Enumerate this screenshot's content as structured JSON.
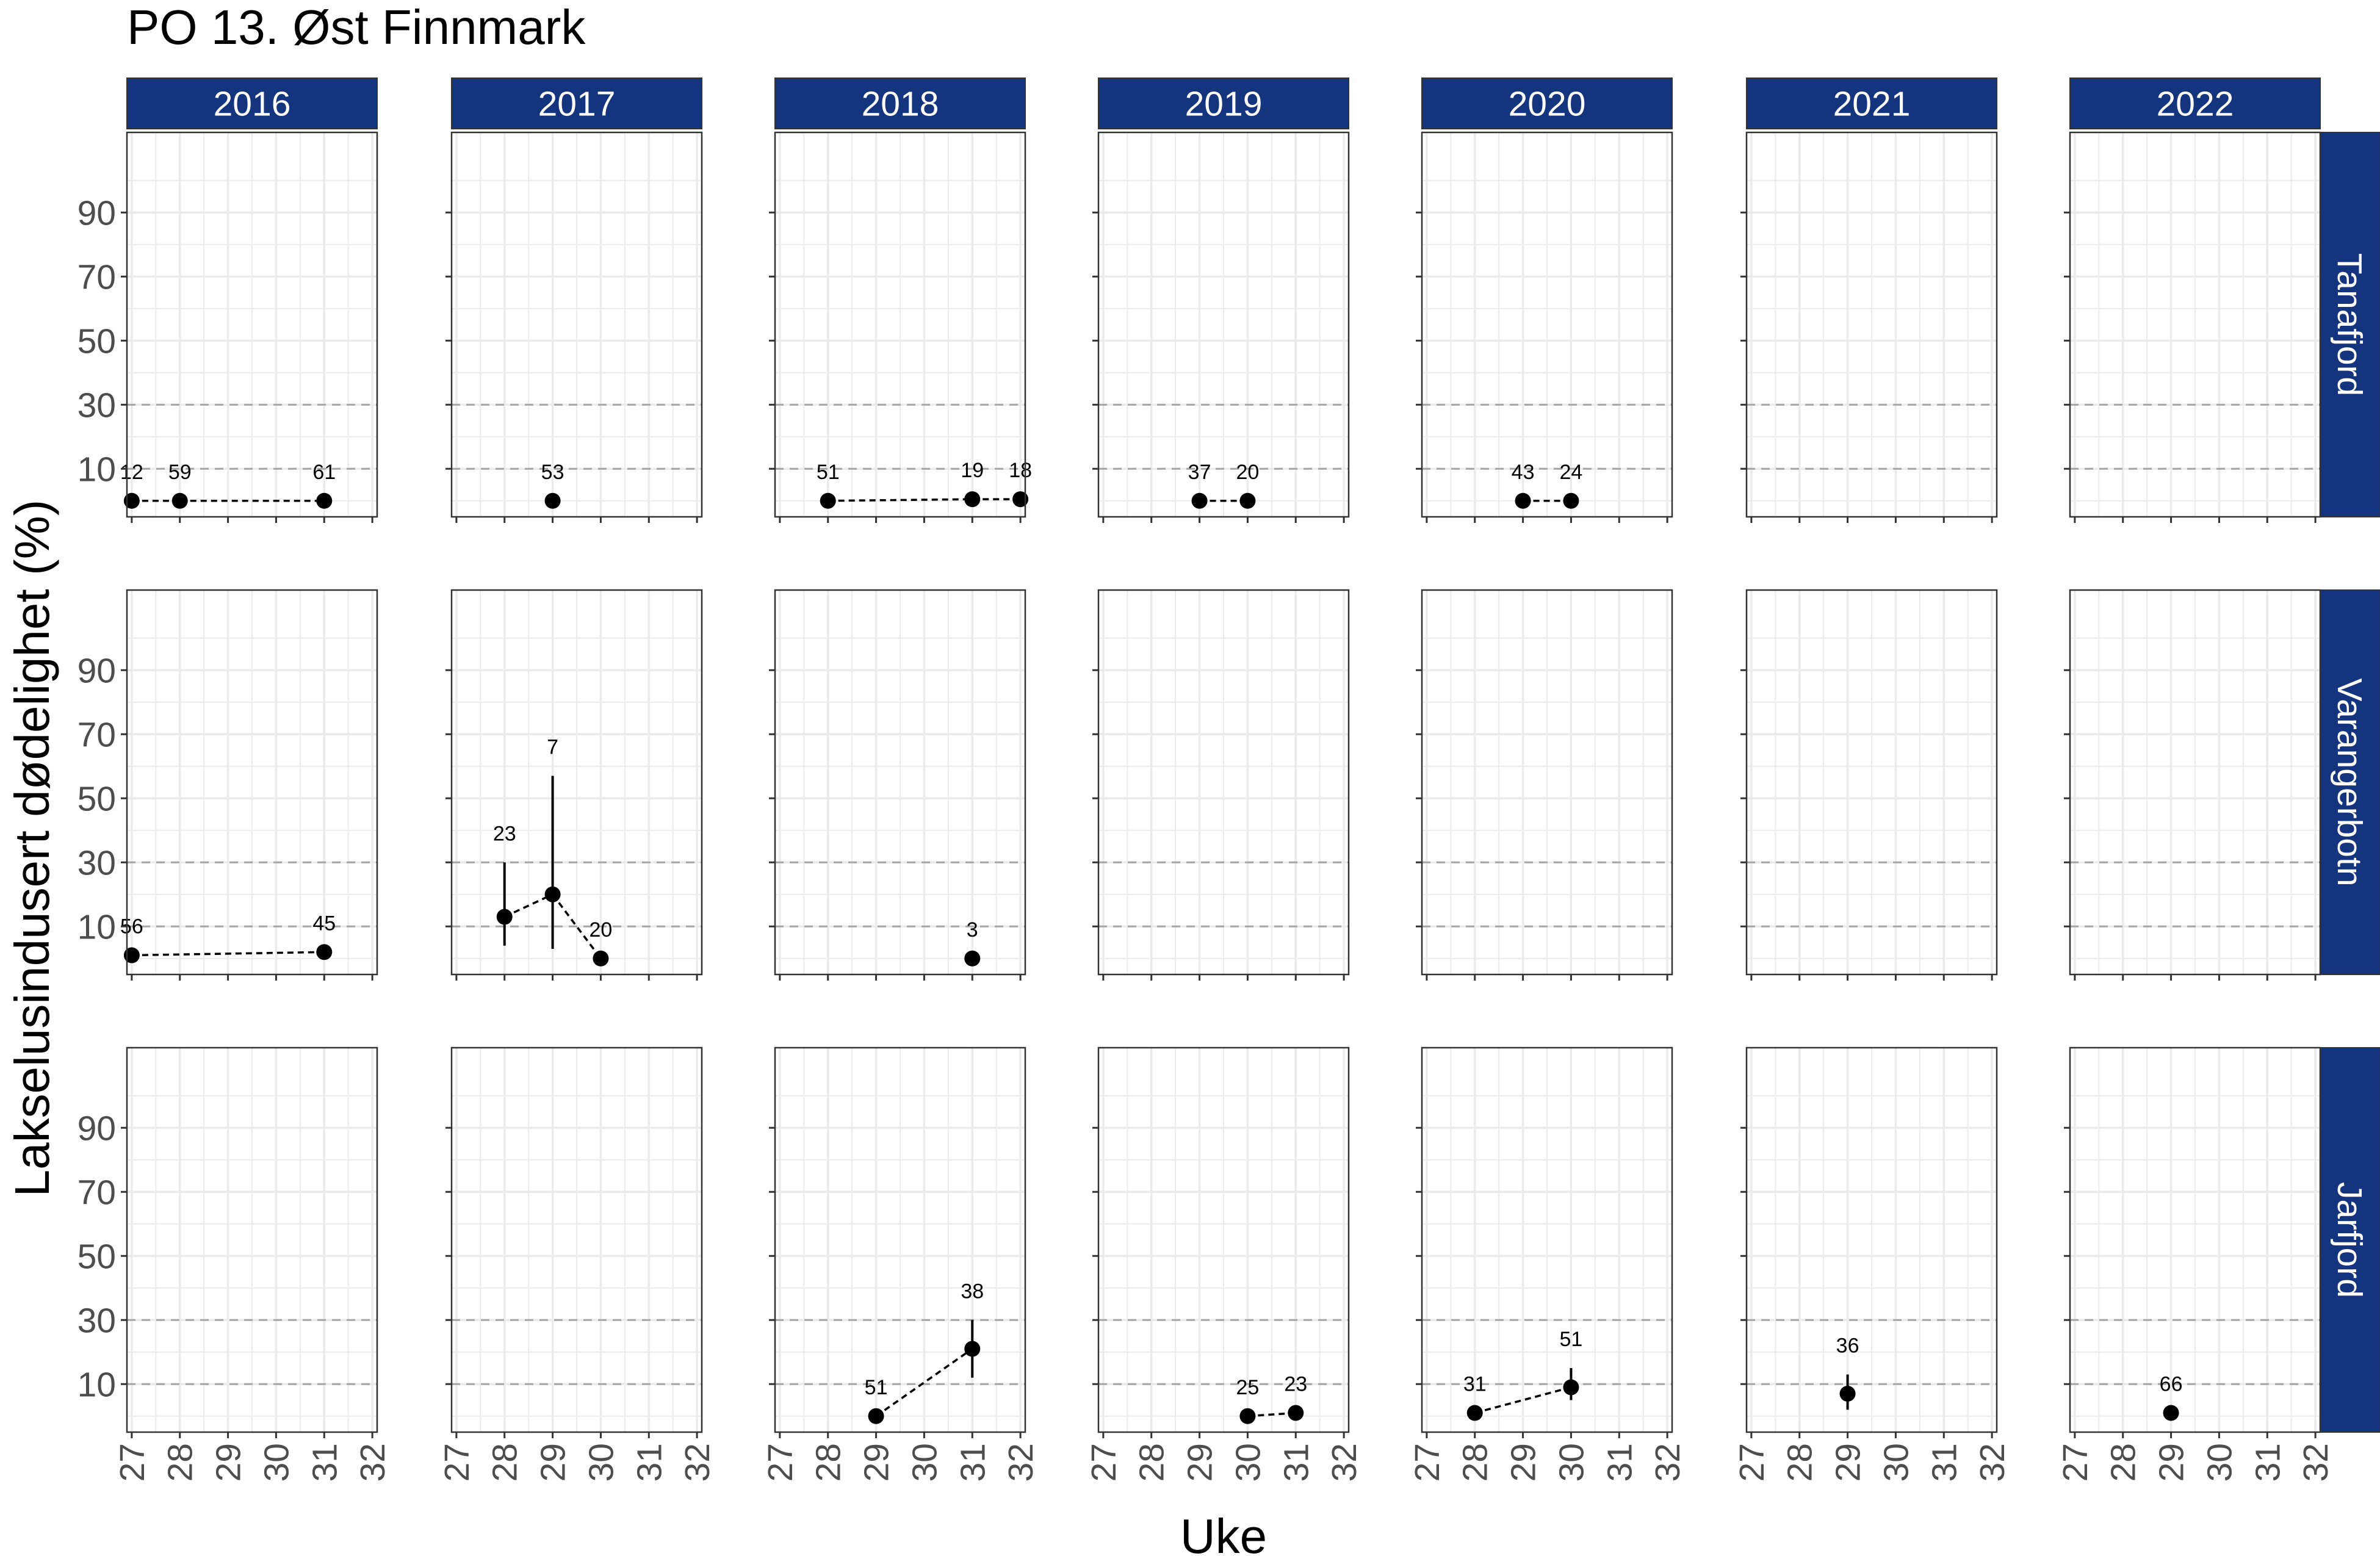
{
  "chart_data": {
    "type": "scatter",
    "title": "PO 13. Øst Finnmark",
    "xlabel": "Uke",
    "ylabel": "Lakselusindusert dødelighet (%)",
    "xlim": [
      26.9,
      32.1
    ],
    "ylim": [
      -5,
      115
    ],
    "x_ticks": [
      27,
      28,
      29,
      30,
      31,
      32
    ],
    "y_ticks": [
      10,
      30,
      50,
      70,
      90
    ],
    "reference_lines": [
      10,
      30
    ],
    "years": [
      "2016",
      "2017",
      "2018",
      "2019",
      "2020",
      "2021",
      "2022"
    ],
    "regions": [
      "Tanafjord",
      "Varangerbotn",
      "Jarfjord"
    ],
    "panels": [
      {
        "region": "Tanafjord",
        "year": "2016",
        "points": [
          {
            "week": 27,
            "value": 0,
            "n": "12"
          },
          {
            "week": 28,
            "value": 0,
            "n": "59"
          },
          {
            "week": 31,
            "value": 0,
            "n": "61"
          }
        ]
      },
      {
        "region": "Tanafjord",
        "year": "2017",
        "points": [
          {
            "week": 29,
            "value": 0,
            "n": "53"
          }
        ]
      },
      {
        "region": "Tanafjord",
        "year": "2018",
        "points": [
          {
            "week": 28,
            "value": 0,
            "n": "51"
          },
          {
            "week": 31,
            "value": 0.5,
            "n": "19"
          },
          {
            "week": 32,
            "value": 0.5,
            "n": "18"
          }
        ]
      },
      {
        "region": "Tanafjord",
        "year": "2019",
        "points": [
          {
            "week": 29,
            "value": 0,
            "n": "37"
          },
          {
            "week": 30,
            "value": 0,
            "n": "20"
          }
        ]
      },
      {
        "region": "Tanafjord",
        "year": "2020",
        "points": [
          {
            "week": 29,
            "value": 0,
            "n": "43"
          },
          {
            "week": 30,
            "value": 0,
            "n": "24"
          }
        ]
      },
      {
        "region": "Tanafjord",
        "year": "2021",
        "points": []
      },
      {
        "region": "Tanafjord",
        "year": "2022",
        "points": []
      },
      {
        "region": "Varangerbotn",
        "year": "2016",
        "points": [
          {
            "week": 27,
            "value": 1,
            "n": "56"
          },
          {
            "week": 31,
            "value": 2,
            "n": "45"
          }
        ]
      },
      {
        "region": "Varangerbotn",
        "year": "2017",
        "points": [
          {
            "week": 28,
            "value": 13,
            "lo": 4,
            "hi": 30,
            "n": "23"
          },
          {
            "week": 29,
            "value": 20,
            "lo": 3,
            "hi": 57,
            "n": "7"
          },
          {
            "week": 30,
            "value": 0,
            "n": "20"
          }
        ]
      },
      {
        "region": "Varangerbotn",
        "year": "2018",
        "points": [
          {
            "week": 31,
            "value": 0,
            "n": "3"
          }
        ]
      },
      {
        "region": "Varangerbotn",
        "year": "2019",
        "points": []
      },
      {
        "region": "Varangerbotn",
        "year": "2020",
        "points": []
      },
      {
        "region": "Varangerbotn",
        "year": "2021",
        "points": []
      },
      {
        "region": "Varangerbotn",
        "year": "2022",
        "points": []
      },
      {
        "region": "Jarfjord",
        "year": "2016",
        "points": []
      },
      {
        "region": "Jarfjord",
        "year": "2017",
        "points": []
      },
      {
        "region": "Jarfjord",
        "year": "2018",
        "points": [
          {
            "week": 29,
            "value": 0,
            "n": "51"
          },
          {
            "week": 31,
            "value": 21,
            "lo": 12,
            "hi": 30,
            "n": "38"
          }
        ]
      },
      {
        "region": "Jarfjord",
        "year": "2019",
        "points": [
          {
            "week": 30,
            "value": 0,
            "n": "25"
          },
          {
            "week": 31,
            "value": 1,
            "n": "23"
          }
        ]
      },
      {
        "region": "Jarfjord",
        "year": "2020",
        "points": [
          {
            "week": 28,
            "value": 1,
            "n": "31"
          },
          {
            "week": 30,
            "value": 9,
            "lo": 5,
            "hi": 15,
            "n": "51"
          }
        ]
      },
      {
        "region": "Jarfjord",
        "year": "2021",
        "points": [
          {
            "week": 29,
            "value": 7,
            "lo": 2,
            "hi": 13,
            "n": "36"
          }
        ]
      },
      {
        "region": "Jarfjord",
        "year": "2022",
        "points": [
          {
            "week": 29,
            "value": 1,
            "n": "66"
          }
        ]
      }
    ]
  },
  "colors": {
    "strip_fill": "#14357e",
    "strip_text": "#ffffff",
    "point": "#000000",
    "reference_line": "#a6a6a6",
    "grid": "#ebebeb",
    "panel_border": "#333333"
  }
}
